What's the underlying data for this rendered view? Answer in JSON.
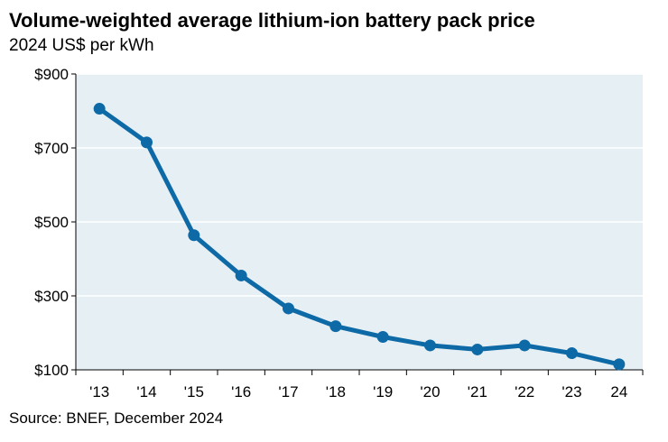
{
  "title": "Volume-weighted average lithium-ion battery pack price",
  "subtitle": "2024 US$ per kWh",
  "source": "Source: BNEF, December 2024",
  "colors": {
    "line": "#0e6aa6",
    "plot_bg": "#e6f0f4",
    "grid": "#ffffff"
  },
  "chart_data": {
    "type": "line",
    "title": "Volume-weighted average lithium-ion battery pack price",
    "subtitle": "2024 US$ per kWh",
    "categories": [
      "'13",
      "'14",
      "'15",
      "'16",
      "'17",
      "'18",
      "'19",
      "'20",
      "'21",
      "'22",
      "'23",
      "24"
    ],
    "values": [
      806,
      715,
      464,
      355,
      266,
      218,
      189,
      166,
      155,
      166,
      145,
      115
    ],
    "ylim": [
      100,
      900
    ],
    "yticks": [
      100,
      300,
      500,
      700,
      900
    ],
    "ytick_labels": [
      "$100",
      "$300",
      "$500",
      "$700",
      "$900"
    ],
    "grid": true,
    "legend": "none"
  }
}
